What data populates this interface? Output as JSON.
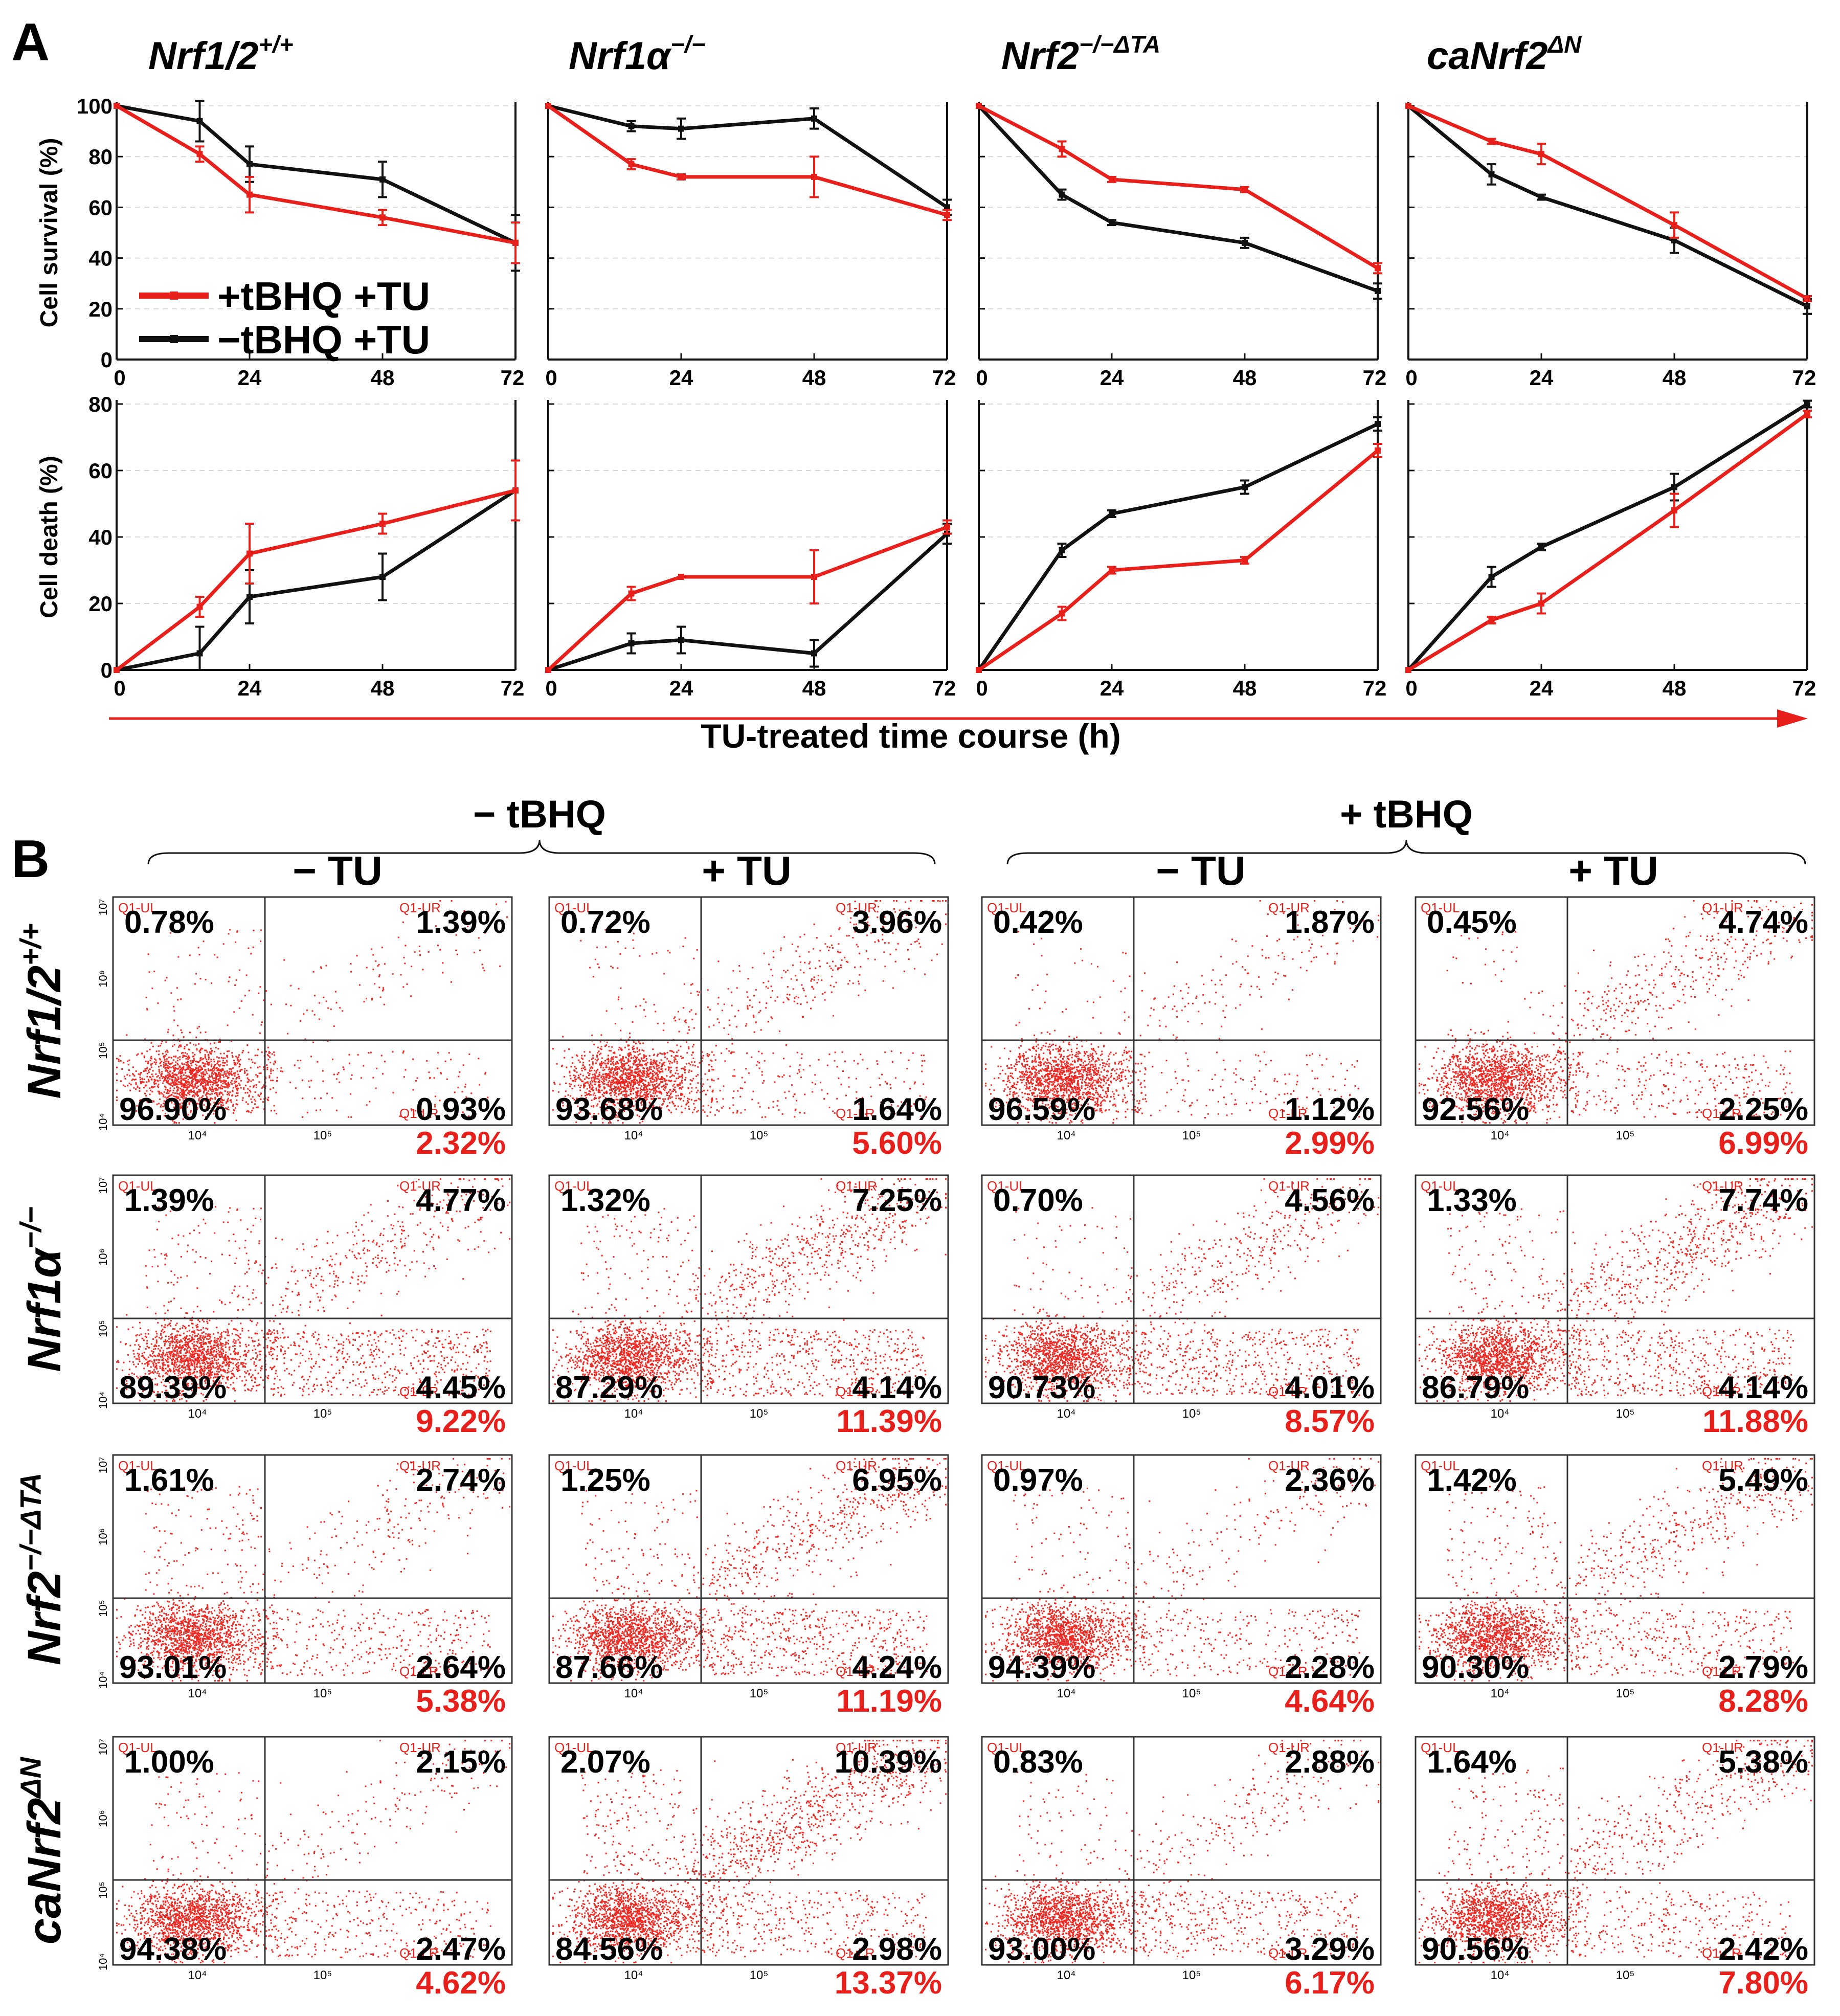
{
  "figure": {
    "panel_a_label": "A",
    "panel_b_label": "B",
    "shared_xlabel": "TU-treated time course (h)",
    "legend": [
      {
        "label": "+tBHQ +TU",
        "color": "#e8201c"
      },
      {
        "label": "−tBHQ +TU",
        "color": "#111111"
      }
    ]
  },
  "colors": {
    "red": "#e8201c",
    "black": "#111111",
    "dot": "#ee2a24",
    "grid": "#d8d8d8",
    "axis": "#111111"
  },
  "chart_data": [
    {
      "type": "line",
      "genotype": {
        "base": "Nrf1/2",
        "sup": "+/+"
      },
      "xlabel": "",
      "ylabel": "Cell survival  (%)",
      "x": [
        0,
        15,
        24,
        48,
        72
      ],
      "xticks": [
        0,
        24,
        48,
        72
      ],
      "xlim": [
        0,
        72
      ],
      "yticks": [
        0,
        20,
        40,
        60,
        80,
        100
      ],
      "ylim": [
        0,
        100
      ],
      "series": [
        {
          "name": "+tBHQ +TU",
          "color": "#e8201c",
          "values": [
            100,
            81,
            65,
            56,
            46
          ],
          "errors": [
            0,
            3,
            7,
            3,
            8
          ]
        },
        {
          "name": "−tBHQ +TU",
          "color": "#111111",
          "values": [
            100,
            94,
            77,
            71,
            46
          ],
          "errors": [
            0,
            8,
            7,
            7,
            11
          ]
        }
      ]
    },
    {
      "type": "line",
      "genotype": {
        "base": "Nrf1α",
        "sup": "−/−"
      },
      "xlabel": "",
      "ylabel": "",
      "x": [
        0,
        15,
        24,
        48,
        72
      ],
      "xticks": [
        0,
        24,
        48,
        72
      ],
      "xlim": [
        0,
        72
      ],
      "yticks": [
        0,
        20,
        40,
        60,
        80,
        100
      ],
      "ylim": [
        0,
        100
      ],
      "series": [
        {
          "name": "+tBHQ +TU",
          "color": "#e8201c",
          "values": [
            100,
            77,
            72,
            72,
            57
          ],
          "errors": [
            0,
            2,
            1,
            8,
            2
          ]
        },
        {
          "name": "−tBHQ +TU",
          "color": "#111111",
          "values": [
            100,
            92,
            91,
            95,
            60
          ],
          "errors": [
            0,
            2,
            4,
            4,
            3
          ]
        }
      ]
    },
    {
      "type": "line",
      "genotype": {
        "base": "Nrf2",
        "sup": "−/−ΔTA"
      },
      "xlabel": "",
      "ylabel": "",
      "x": [
        0,
        15,
        24,
        48,
        72
      ],
      "xticks": [
        0,
        24,
        48,
        72
      ],
      "xlim": [
        0,
        72
      ],
      "yticks": [
        0,
        20,
        40,
        60,
        80,
        100
      ],
      "ylim": [
        0,
        100
      ],
      "series": [
        {
          "name": "+tBHQ +TU",
          "color": "#e8201c",
          "values": [
            100,
            83,
            71,
            67,
            36
          ],
          "errors": [
            0,
            3,
            1,
            1,
            2
          ]
        },
        {
          "name": "−tBHQ +TU",
          "color": "#111111",
          "values": [
            100,
            65,
            54,
            46,
            27
          ],
          "errors": [
            0,
            2,
            1,
            2,
            3
          ]
        }
      ]
    },
    {
      "type": "line",
      "genotype": {
        "base": "caNrf2",
        "sup": "ΔN"
      },
      "xlabel": "",
      "ylabel": "",
      "x": [
        0,
        15,
        24,
        48,
        72
      ],
      "xticks": [
        0,
        24,
        48,
        72
      ],
      "xlim": [
        0,
        72
      ],
      "yticks": [
        0,
        20,
        40,
        60,
        80,
        100
      ],
      "ylim": [
        0,
        100
      ],
      "series": [
        {
          "name": "+tBHQ +TU",
          "color": "#e8201c",
          "values": [
            100,
            86,
            81,
            53,
            24
          ],
          "errors": [
            0,
            1,
            4,
            5,
            1
          ]
        },
        {
          "name": "−tBHQ +TU",
          "color": "#111111",
          "values": [
            100,
            73,
            64,
            47,
            21
          ],
          "errors": [
            0,
            4,
            1,
            5,
            3
          ]
        }
      ]
    },
    {
      "type": "line",
      "genotype": {
        "base": "Nrf1/2",
        "sup": "+/+"
      },
      "xlabel": "",
      "ylabel": "Cell death  (%)",
      "x": [
        0,
        15,
        24,
        48,
        72
      ],
      "xticks": [
        0,
        24,
        48,
        72
      ],
      "xlim": [
        0,
        72
      ],
      "yticks": [
        0,
        20,
        40,
        60,
        80
      ],
      "ylim": [
        0,
        80
      ],
      "series": [
        {
          "name": "+tBHQ +TU",
          "color": "#e8201c",
          "values": [
            0,
            19,
            35,
            44,
            54
          ],
          "errors": [
            0,
            3,
            9,
            3,
            9
          ]
        },
        {
          "name": "−tBHQ +TU",
          "color": "#111111",
          "values": [
            0,
            5,
            22,
            28,
            54
          ],
          "errors": [
            0,
            8,
            8,
            7,
            9
          ]
        }
      ]
    },
    {
      "type": "line",
      "genotype": {
        "base": "Nrf1α",
        "sup": "−/−"
      },
      "xlabel": "",
      "ylabel": "",
      "x": [
        0,
        15,
        24,
        48,
        72
      ],
      "xticks": [
        0,
        24,
        48,
        72
      ],
      "xlim": [
        0,
        72
      ],
      "yticks": [
        0,
        20,
        40,
        60,
        80
      ],
      "ylim": [
        0,
        80
      ],
      "series": [
        {
          "name": "+tBHQ +TU",
          "color": "#e8201c",
          "values": [
            0,
            23,
            28,
            28,
            43
          ],
          "errors": [
            0,
            2,
            0,
            8,
            2
          ]
        },
        {
          "name": "−tBHQ +TU",
          "color": "#111111",
          "values": [
            0,
            8,
            9,
            5,
            41
          ],
          "errors": [
            0,
            3,
            4,
            4,
            3
          ]
        }
      ]
    },
    {
      "type": "line",
      "genotype": {
        "base": "Nrf2",
        "sup": "−/−ΔTA"
      },
      "xlabel": "",
      "ylabel": "",
      "x": [
        0,
        15,
        24,
        48,
        72
      ],
      "xticks": [
        0,
        24,
        48,
        72
      ],
      "xlim": [
        0,
        72
      ],
      "yticks": [
        0,
        20,
        40,
        60,
        80
      ],
      "ylim": [
        0,
        80
      ],
      "series": [
        {
          "name": "+tBHQ +TU",
          "color": "#e8201c",
          "values": [
            0,
            17,
            30,
            33,
            66
          ],
          "errors": [
            0,
            2,
            1,
            1,
            2
          ]
        },
        {
          "name": "−tBHQ +TU",
          "color": "#111111",
          "values": [
            0,
            36,
            47,
            55,
            74
          ],
          "errors": [
            0,
            2,
            1,
            2,
            2
          ]
        }
      ]
    },
    {
      "type": "line",
      "genotype": {
        "base": "caNrf2",
        "sup": "ΔN"
      },
      "xlabel": "",
      "ylabel": "",
      "x": [
        0,
        15,
        24,
        48,
        72
      ],
      "xticks": [
        0,
        24,
        48,
        72
      ],
      "xlim": [
        0,
        72
      ],
      "yticks": [
        0,
        20,
        40,
        60,
        80
      ],
      "ylim": [
        0,
        80
      ],
      "series": [
        {
          "name": "+tBHQ +TU",
          "color": "#e8201c",
          "values": [
            0,
            15,
            20,
            48,
            77
          ],
          "errors": [
            0,
            1,
            3,
            5,
            1
          ]
        },
        {
          "name": "−tBHQ +TU",
          "color": "#111111",
          "values": [
            0,
            28,
            37,
            55,
            80
          ],
          "errors": [
            0,
            3,
            1,
            4,
            1
          ]
        }
      ]
    }
  ],
  "flow": {
    "group_labels": [
      "− tBHQ",
      "+ tBHQ"
    ],
    "condition_labels": [
      "− TU",
      "+ TU",
      "− TU",
      "+ TU"
    ],
    "row_labels": [
      {
        "base": "Nrf1/2",
        "sup": "+/+"
      },
      {
        "base": "Nrf1α",
        "sup": "−/−"
      },
      {
        "base": "Nrf2",
        "sup": "−/−ΔTA"
      },
      {
        "base": "caNrf2",
        "sup": "ΔN"
      }
    ],
    "gate_labels": {
      "ul": "Q1-UL",
      "ur": "Q1-UR",
      "lr": "Q1-LR"
    },
    "tick_labels": {
      "x": [
        "10⁴",
        "10⁵"
      ],
      "y": [
        "10⁷",
        "10⁶",
        "10⁵",
        "10⁴"
      ]
    },
    "cells": [
      [
        {
          "ul": "0.78%",
          "ur": "1.39%",
          "ll": "96.90%",
          "lr": "0.93%",
          "total": "2.32%"
        },
        {
          "ul": "0.72%",
          "ur": "3.96%",
          "ll": "93.68%",
          "lr": "1.64%",
          "total": "5.60%"
        },
        {
          "ul": "0.42%",
          "ur": "1.87%",
          "ll": "96.59%",
          "lr": "1.12%",
          "total": "2.99%"
        },
        {
          "ul": "0.45%",
          "ur": "4.74%",
          "ll": "92.56%",
          "lr": "2.25%",
          "total": "6.99%"
        }
      ],
      [
        {
          "ul": "1.39%",
          "ur": "4.77%",
          "ll": "89.39%",
          "lr": "4.45%",
          "total": "9.22%"
        },
        {
          "ul": "1.32%",
          "ur": "7.25%",
          "ll": "87.29%",
          "lr": "4.14%",
          "total": "11.39%"
        },
        {
          "ul": "0.70%",
          "ur": "4.56%",
          "ll": "90.73%",
          "lr": "4.01%",
          "total": "8.57%"
        },
        {
          "ul": "1.33%",
          "ur": "7.74%",
          "ll": "86.79%",
          "lr": "4.14%",
          "total": "11.88%"
        }
      ],
      [
        {
          "ul": "1.61%",
          "ur": "2.74%",
          "ll": "93.01%",
          "lr": "2.64%",
          "total": "5.38%"
        },
        {
          "ul": "1.25%",
          "ur": "6.95%",
          "ll": "87.66%",
          "lr": "4.24%",
          "total": "11.19%"
        },
        {
          "ul": "0.97%",
          "ur": "2.36%",
          "ll": "94.39%",
          "lr": "2.28%",
          "total": "4.64%"
        },
        {
          "ul": "1.42%",
          "ur": "5.49%",
          "ll": "90.30%",
          "lr": "2.79%",
          "total": "8.28%"
        }
      ],
      [
        {
          "ul": "1.00%",
          "ur": "2.15%",
          "ll": "94.38%",
          "lr": "2.47%",
          "total": "4.62%"
        },
        {
          "ul": "2.07%",
          "ur": "10.39%",
          "ll": "84.56%",
          "lr": "2.98%",
          "total": "13.37%"
        },
        {
          "ul": "0.83%",
          "ur": "2.88%",
          "ll": "93.00%",
          "lr": "3.29%",
          "total": "6.17%"
        },
        {
          "ul": "1.64%",
          "ur": "5.38%",
          "ll": "90.56%",
          "lr": "2.42%",
          "total": "7.80%"
        }
      ]
    ]
  }
}
